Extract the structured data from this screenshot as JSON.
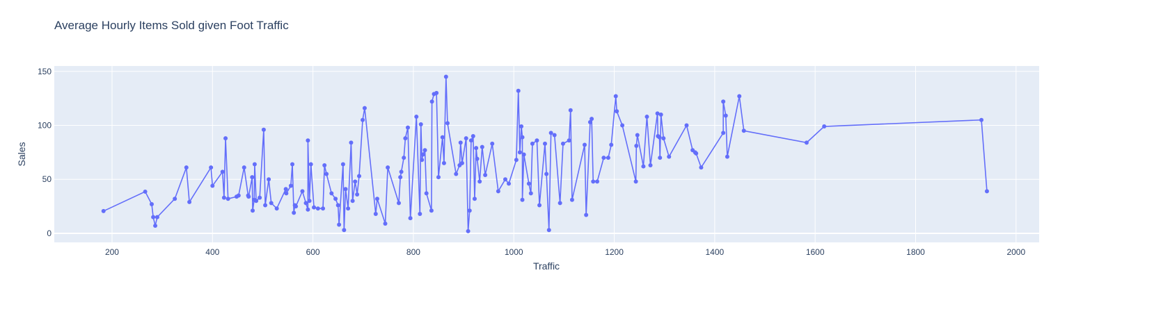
{
  "chart_data": {
    "type": "line",
    "title": "Average Hourly Items Sold given Foot Traffic",
    "x_label": "Traffic",
    "y_label": "Sales",
    "xlim": [
      85,
      2046
    ],
    "ylim": [
      -8.4,
      155
    ],
    "xticks": [
      200,
      400,
      600,
      800,
      1000,
      1200,
      1400,
      1600,
      1800,
      2000
    ],
    "yticks": [
      0,
      50,
      100,
      150
    ],
    "grid": true,
    "series": [
      {
        "color": "#636efa",
        "x": [
          183,
          266,
          279,
          282,
          286,
          290,
          325,
          348,
          354,
          397,
          400,
          420,
          423,
          426,
          431,
          448,
          452,
          463,
          471,
          472,
          479,
          480,
          483,
          484,
          487,
          494,
          502,
          505,
          512,
          517,
          528,
          546,
          547,
          556,
          559,
          562,
          564,
          566,
          579,
          586,
          590,
          590,
          593,
          596,
          602,
          610,
          620,
          623,
          627,
          637,
          645,
          650,
          652,
          660,
          662,
          665,
          670,
          676,
          679,
          684,
          688,
          692,
          699,
          703,
          725,
          728,
          744,
          749,
          771,
          774,
          776,
          781,
          784,
          789,
          794,
          806,
          813,
          815,
          817,
          819,
          823,
          826,
          836,
          837,
          841,
          846,
          850,
          858,
          861,
          865,
          868,
          885,
          892,
          894,
          897,
          905,
          909,
          912,
          915,
          919,
          922,
          925,
          927,
          932,
          937,
          943,
          957,
          969,
          983,
          990,
          1005,
          1009,
          1012,
          1015,
          1017,
          1017,
          1020,
          1030,
          1034,
          1037,
          1046,
          1051,
          1062,
          1065,
          1070,
          1074,
          1081,
          1092,
          1098,
          1110,
          1113,
          1116,
          1141,
          1144,
          1152,
          1155,
          1158,
          1166,
          1179,
          1188,
          1194,
          1203,
          1205,
          1216,
          1243,
          1244,
          1246,
          1258,
          1265,
          1272,
          1286,
          1287,
          1290,
          1291,
          1293,
          1298,
          1309,
          1344,
          1356,
          1361,
          1363,
          1373,
          1417,
          1417,
          1422,
          1425,
          1449,
          1458,
          1583,
          1618,
          1931,
          1942
        ],
        "values": [
          20.6,
          38.6,
          27,
          15,
          7,
          15,
          32,
          61,
          29,
          61,
          44,
          57,
          33,
          88,
          32,
          34,
          35,
          61,
          35,
          34,
          52,
          21,
          31,
          64,
          30,
          33,
          96,
          26,
          50,
          28,
          23,
          41,
          37,
          44,
          64,
          19,
          26,
          25,
          39,
          28,
          22,
          86,
          30,
          64,
          24,
          23,
          23,
          63,
          55,
          37,
          32,
          26,
          8,
          64,
          3,
          41,
          23,
          84,
          30,
          48,
          36,
          53,
          105,
          116,
          18,
          32,
          9,
          61,
          28,
          52,
          57,
          70,
          88,
          98,
          14,
          108,
          18,
          101,
          68,
          73,
          77,
          37,
          21,
          122,
          129,
          130,
          52,
          89,
          65,
          145,
          102,
          55,
          63,
          84,
          65,
          88,
          2,
          21,
          86,
          90,
          32,
          79,
          69,
          48,
          80,
          54,
          83,
          39,
          50,
          46,
          68,
          132,
          75,
          99,
          89,
          31,
          73,
          46,
          37,
          83,
          86,
          26,
          83,
          55,
          3,
          93,
          91,
          28,
          83,
          86,
          114,
          31,
          82,
          17,
          103,
          106,
          48,
          48,
          70,
          70,
          82,
          127,
          113,
          100,
          48,
          81,
          91,
          62,
          108,
          63,
          111,
          90,
          89,
          70,
          110,
          88,
          71,
          100,
          77,
          75,
          74,
          61,
          93,
          122,
          109,
          71,
          127,
          95,
          84,
          99,
          105,
          39
        ]
      }
    ]
  }
}
